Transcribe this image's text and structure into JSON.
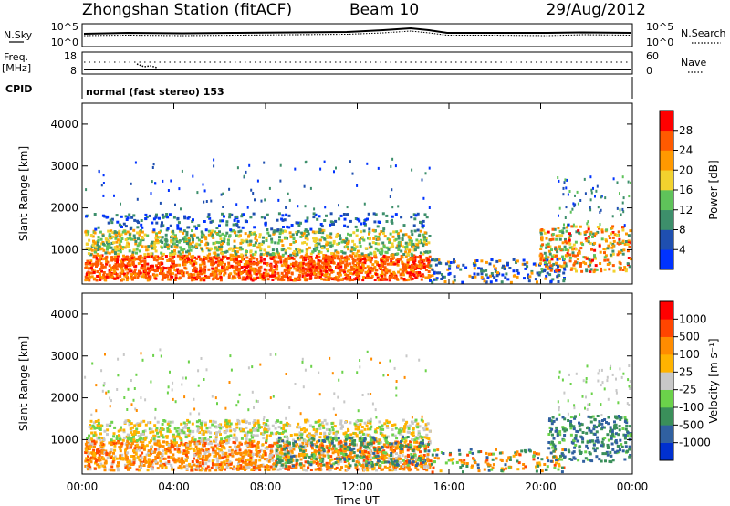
{
  "header": {
    "station": "Zhongshan Station (fitACF)",
    "beam": "Beam 10",
    "date": "29/Aug/2012"
  },
  "summary": {
    "nsky_label": "N.Sky",
    "nsky_ticks": [
      "10^5",
      "10^0"
    ],
    "nsearch_label": "N.Search",
    "nsearch_ticks": [
      "10^5",
      "10^0"
    ],
    "freq_label": [
      "Freq.",
      "[MHz]"
    ],
    "freq_ticks": [
      "18",
      "8"
    ],
    "nave_label": "Nave",
    "nave_ticks": [
      "60",
      "0"
    ],
    "cpid_label": "CPID",
    "cpid_text": "normal (fast stereo) 153"
  },
  "colors": {
    "power": [
      "#0033ff",
      "#1f4fb0",
      "#3d8f6b",
      "#5fc35a",
      "#f2d22e",
      "#ff9900",
      "#ff5a00",
      "#ff0000"
    ],
    "velocity": [
      "#ff0000",
      "#ff4500",
      "#ff8c00",
      "#ffb300",
      "#c8c8c8",
      "#6bd24a",
      "#3a8f5a",
      "#3060a0",
      "#0030d0"
    ]
  },
  "chart_data": [
    {
      "type": "heatmap",
      "title": "Power",
      "xlabel": "",
      "ylabel": "Slant Range [km]",
      "xlim": [
        "00:00",
        "00:00"
      ],
      "ylim": [
        180,
        4500
      ],
      "yticks": [
        "4000",
        "3000",
        "2000",
        "1000"
      ],
      "colorbar": {
        "label": "Power [dB]",
        "ticks": [
          "28",
          "24",
          "20",
          "16",
          "12",
          "8",
          "4"
        ],
        "range": [
          0,
          32
        ]
      }
    },
    {
      "type": "heatmap",
      "title": "Velocity",
      "xlabel": "Time UT",
      "ylabel": "Slant Range [km]",
      "xticks": [
        "00:00",
        "04:00",
        "08:00",
        "12:00",
        "16:00",
        "20:00",
        "00:00"
      ],
      "ylim": [
        180,
        4500
      ],
      "yticks": [
        "4000",
        "3000",
        "2000",
        "1000"
      ],
      "colorbar": {
        "label": "Velocity [m s⁻¹]",
        "ticks": [
          "1000",
          "500",
          "100",
          "25",
          "-25",
          "-100",
          "-500",
          "-1000"
        ]
      }
    }
  ]
}
